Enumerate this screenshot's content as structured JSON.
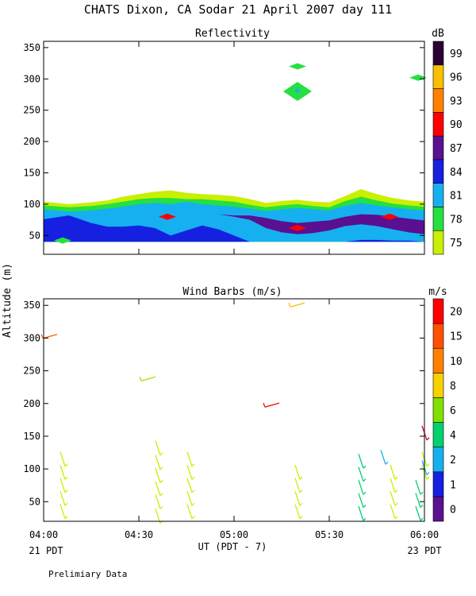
{
  "title": "CHATS Dixon, CA  Sodar  21 April 2007  day 111",
  "footer_note": "Prelimiary Data",
  "shared_axes": {
    "ylabel": "Altitude (m)",
    "xlabel": "UT  (PDT - 7)",
    "x_ticks": [
      "04:00",
      "04:30",
      "05:00",
      "05:30",
      "06:00"
    ],
    "x_minutes": [
      0,
      30,
      60,
      90,
      120
    ],
    "x_range": [
      0,
      120
    ],
    "start_caption": "21 PDT",
    "end_caption": "23 PDT"
  },
  "chart_data": [
    {
      "type": "heatmap",
      "title": "Reflectivity",
      "ylim": [
        20,
        360
      ],
      "y_ticks": [
        50,
        100,
        150,
        200,
        250,
        300,
        350
      ],
      "x_minutes": [
        0,
        8,
        15,
        20,
        25,
        30,
        35,
        40,
        45,
        50,
        55,
        60,
        65,
        70,
        75,
        80,
        85,
        90,
        95,
        100,
        105,
        110,
        115,
        120
      ],
      "layers": [
        {
          "level": 75,
          "top": [
            104,
            100,
            103,
            106,
            112,
            116,
            120,
            122,
            118,
            116,
            115,
            113,
            108,
            102,
            105,
            107,
            104,
            103,
            113,
            124,
            116,
            110,
            106,
            104
          ]
        },
        {
          "level": 78,
          "top": [
            98,
            95,
            97,
            100,
            104,
            108,
            110,
            110,
            108,
            108,
            106,
            104,
            99,
            95,
            98,
            100,
            97,
            95,
            105,
            112,
            106,
            101,
            98,
            96
          ]
        },
        {
          "level": 81,
          "top": [
            92,
            88,
            90,
            93,
            96,
            100,
            102,
            100,
            104,
            100,
            98,
            96,
            93,
            89,
            92,
            94,
            92,
            90,
            97,
            102,
            98,
            95,
            92,
            90
          ]
        },
        {
          "level": 84,
          "top": [
            76,
            82,
            70,
            64,
            64,
            66,
            62,
            50,
            58,
            66,
            60,
            50,
            40,
            40,
            40,
            40,
            40,
            40,
            40,
            43,
            43,
            42,
            42,
            40
          ]
        },
        {
          "level": 87,
          "top": [
            40,
            40,
            40,
            40,
            40,
            40,
            40,
            40,
            40,
            40,
            40,
            40,
            40,
            40,
            40,
            40,
            40,
            40,
            40,
            40,
            40,
            40,
            40,
            40
          ]
        }
      ],
      "purple_region": {
        "level": 87,
        "top": [
          84,
          84,
          84,
          84,
          84,
          84,
          84,
          84,
          84,
          84,
          84,
          82,
          82,
          78,
          73,
          70,
          72,
          74,
          80,
          84,
          83,
          80,
          77,
          74
        ],
        "bottom": [
          84,
          84,
          84,
          84,
          84,
          84,
          84,
          84,
          84,
          84,
          84,
          80,
          75,
          62,
          55,
          52,
          54,
          58,
          65,
          68,
          65,
          60,
          55,
          52
        ]
      },
      "patches": [
        {
          "level": 90,
          "x": 39,
          "y": 80
        },
        {
          "level": 90,
          "x": 80,
          "y": 62
        },
        {
          "level": 90,
          "x": 109,
          "y": 80
        },
        {
          "level": 78,
          "x": 6,
          "y": 42
        },
        {
          "level": 78,
          "x": 80,
          "y": 320
        },
        {
          "level": 78,
          "x": 80,
          "y": 280
        },
        {
          "level": 81,
          "x": 80,
          "y": 281
        },
        {
          "level": 78,
          "x": 118,
          "y": 302
        }
      ],
      "legend": {
        "unit": "dB",
        "labels": [
          "75",
          "78",
          "81",
          "84",
          "87",
          "90",
          "93",
          "96",
          "99"
        ],
        "colors": [
          "#c8f000",
          "#25e040",
          "#16b0f0",
          "#1520e0",
          "#5a1090",
          "#ff0000",
          "#ff8000",
          "#f8c000",
          "#2a0035"
        ]
      }
    },
    {
      "type": "scatter",
      "title": "Wind Barbs (m/s)",
      "ylim": [
        20,
        360
      ],
      "y_ticks": [
        50,
        100,
        150,
        200,
        250,
        300,
        350
      ],
      "series": [
        {
          "color": "#c8f000",
          "points": [
            [
              6,
              115
            ],
            [
              6,
              95
            ],
            [
              6,
              75
            ],
            [
              6,
              55
            ],
            [
              6,
              35
            ],
            [
              36,
              132
            ],
            [
              36,
              110
            ],
            [
              36,
              90
            ],
            [
              36,
              70
            ],
            [
              36,
              50
            ],
            [
              36,
              28
            ],
            [
              46,
              115
            ],
            [
              46,
              95
            ],
            [
              46,
              75
            ],
            [
              46,
              55
            ],
            [
              46,
              35
            ],
            [
              80,
              95
            ],
            [
              80,
              75
            ],
            [
              80,
              55
            ],
            [
              80,
              35
            ],
            [
              110,
              95
            ],
            [
              110,
              75
            ],
            [
              110,
              55
            ],
            [
              110,
              35
            ],
            [
              120,
              115
            ],
            [
              120,
              95
            ]
          ]
        },
        {
          "color": "#00d070",
          "points": [
            [
              100,
              112
            ],
            [
              100,
              92
            ],
            [
              100,
              72
            ],
            [
              100,
              52
            ],
            [
              100,
              32
            ],
            [
              118,
              72
            ],
            [
              118,
              52
            ],
            [
              118,
              32
            ]
          ]
        },
        {
          "color": "#16b0f0",
          "points": [
            [
              107,
              118
            ],
            [
              120,
              102
            ]
          ]
        },
        {
          "color": "#a0e000",
          "points": [
            [
              33,
              237
            ]
          ]
        },
        {
          "color": "#f8c000",
          "points": [
            [
              80,
              350
            ]
          ]
        },
        {
          "color": "#ff6000",
          "points": [
            [
              2,
              302
            ]
          ]
        },
        {
          "color": "#ff0000",
          "points": [
            [
              72,
              197
            ]
          ]
        },
        {
          "color": "#e00020",
          "points": [
            [
              120,
              155
            ]
          ]
        }
      ],
      "legend": {
        "unit": "m/s",
        "labels": [
          "0",
          "1",
          "2",
          "4",
          "6",
          "8",
          "10",
          "15",
          "20"
        ],
        "colors": [
          "#5a1090",
          "#1520e0",
          "#16b0f0",
          "#00d070",
          "#80e000",
          "#f8d000",
          "#ff8000",
          "#ff5000",
          "#ff0000"
        ]
      }
    }
  ]
}
